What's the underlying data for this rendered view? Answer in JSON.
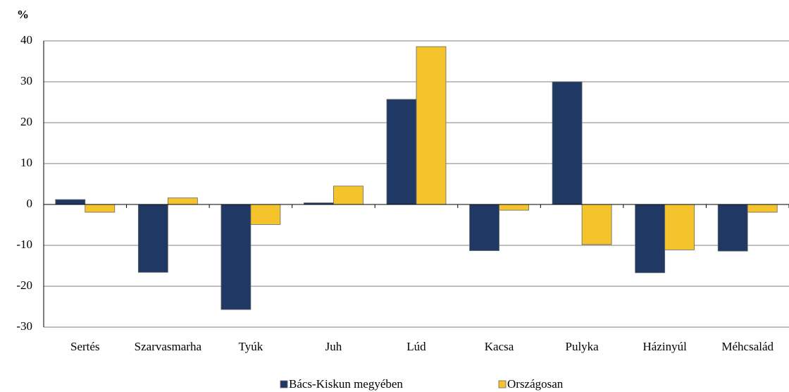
{
  "chart_data": {
    "type": "bar",
    "y_label": "%",
    "categories": [
      "Sertés",
      "Szarvasmarha",
      "Tyúk",
      "Juh",
      "Lúd",
      "Kacsa",
      "Pulyka",
      "Házinyúl",
      "Méhcsalád"
    ],
    "series": [
      {
        "name": "Bács-Kiskun megyében",
        "color": "#1f3864",
        "values": [
          1.2,
          -16.6,
          -25.7,
          0.4,
          25.7,
          -11.3,
          30.0,
          -16.7,
          -11.4
        ]
      },
      {
        "name": "Országosan",
        "color": "#f5c42c",
        "values": [
          -1.9,
          1.6,
          -4.9,
          4.5,
          38.6,
          -1.4,
          -9.8,
          -11.1,
          -1.9
        ]
      }
    ],
    "ylim": [
      -30,
      40
    ],
    "yticks": [
      -30,
      -20,
      -10,
      0,
      10,
      20,
      30,
      40
    ],
    "grid": true,
    "legend": "bottom"
  }
}
